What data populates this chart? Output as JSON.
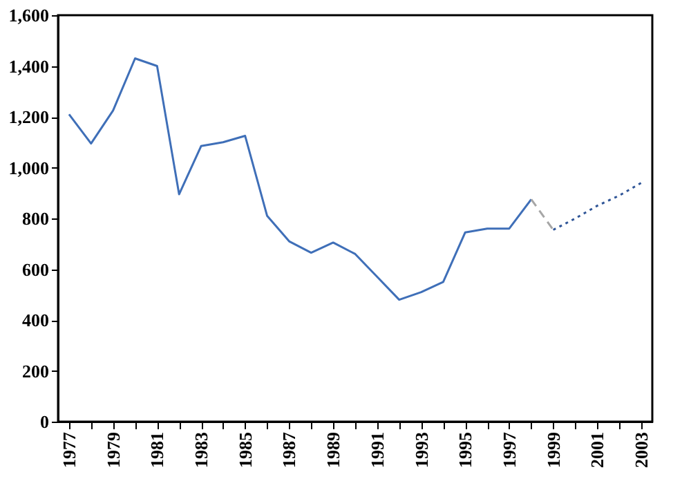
{
  "chart_data": {
    "type": "line",
    "categories": [
      "1977",
      null,
      "1979",
      null,
      "1981",
      null,
      "1983",
      null,
      "1985",
      null,
      "1987",
      null,
      "1989",
      null,
      "1991",
      null,
      "1993",
      null,
      "1995",
      null,
      "1997",
      null,
      "1999",
      null,
      "2001",
      null,
      "2003"
    ],
    "series": [
      {
        "color": "#3f6fb8",
        "line_style": "solid",
        "values": [
          1210,
          1095,
          1225,
          1430,
          1400,
          895,
          1085,
          1100,
          1125,
          810,
          710,
          665,
          705,
          660,
          570,
          480,
          510,
          550,
          745,
          760,
          760,
          875,
          null,
          null,
          null,
          null,
          null
        ]
      },
      {
        "color": "#a6a6a6",
        "line_style": "dashed",
        "values": [
          null,
          null,
          null,
          null,
          null,
          null,
          null,
          null,
          null,
          null,
          null,
          null,
          null,
          null,
          null,
          null,
          null,
          null,
          null,
          null,
          null,
          875,
          755,
          null,
          null,
          null,
          null
        ]
      },
      {
        "color": "#2f5597",
        "line_style": "dotted",
        "values": [
          null,
          null,
          null,
          null,
          null,
          null,
          null,
          null,
          null,
          null,
          null,
          null,
          null,
          null,
          null,
          null,
          null,
          null,
          null,
          null,
          null,
          null,
          755,
          800,
          850,
          890,
          940
        ]
      }
    ],
    "ylim": [
      0,
      1600
    ],
    "yticks": [
      0,
      200,
      400,
      600,
      800,
      {
        "value": 1000,
        "label": "1,000"
      },
      {
        "value": 1200,
        "label": "1,200"
      },
      {
        "value": 1400,
        "label": "1,400"
      },
      {
        "value": 1600,
        "label": "1,600"
      }
    ],
    "grid": false,
    "marker": "none"
  }
}
